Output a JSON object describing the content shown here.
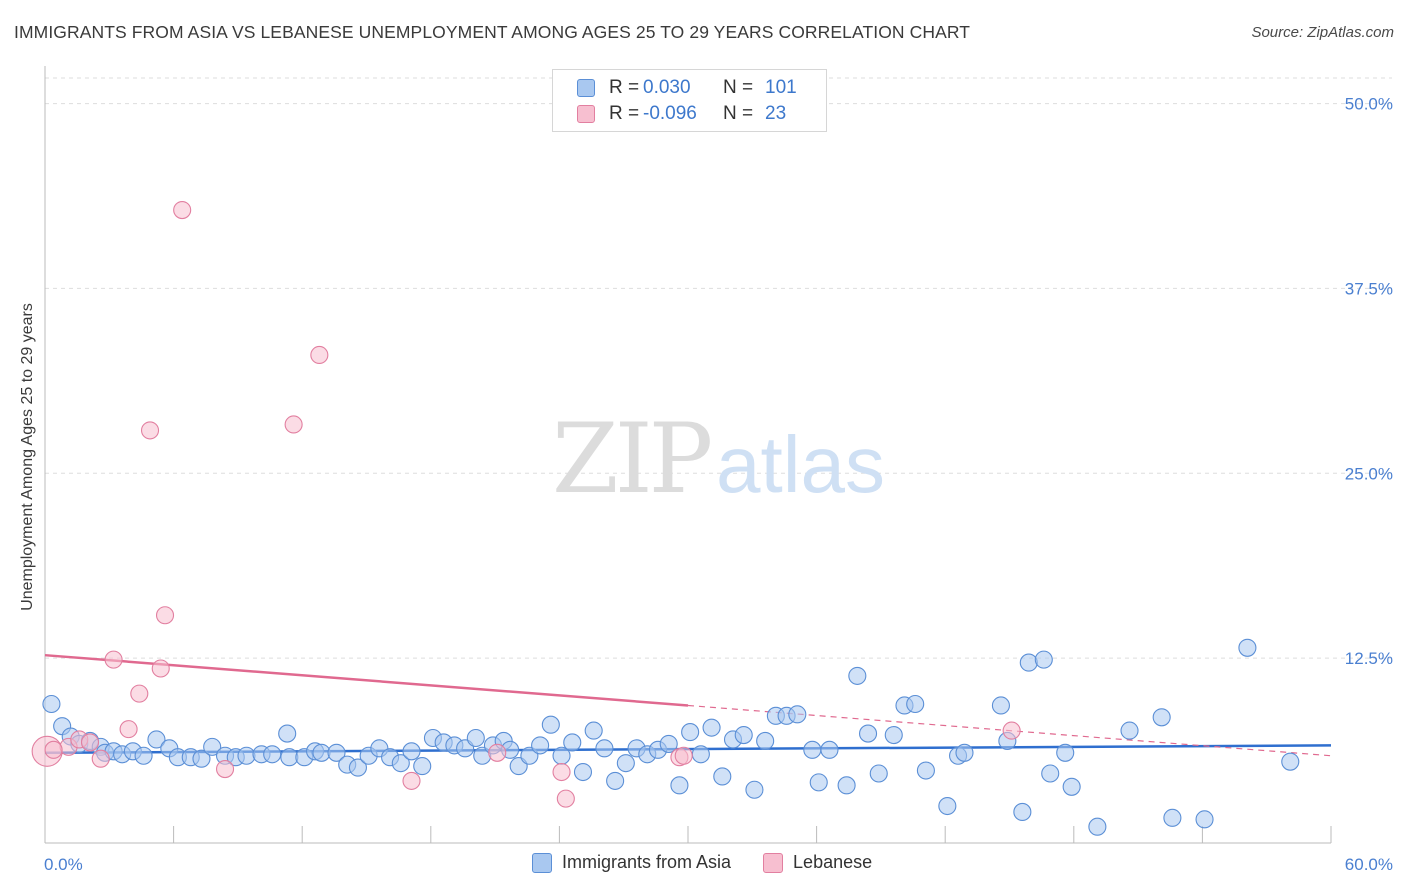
{
  "header": {
    "title": "IMMIGRANTS FROM ASIA VS LEBANESE UNEMPLOYMENT AMONG AGES 25 TO 29 YEARS CORRELATION CHART",
    "source": "Source: ZipAtlas.com"
  },
  "watermark": {
    "zip": "ZIP",
    "atlas": "atlas"
  },
  "legend": {
    "rows": [
      {
        "r_label": "R =",
        "r_value": "0.030",
        "n_label": "N =",
        "n_value": "101",
        "color": "#a9c8f0",
        "border": "#5b8fd6"
      },
      {
        "r_label": "R =",
        "r_value": "-0.096",
        "n_label": "N =",
        "n_value": "23",
        "color": "#f7bfd0",
        "border": "#e27fa0"
      }
    ]
  },
  "bottom_legend": [
    {
      "label": "Immigrants from Asia",
      "color": "#a9c8f0",
      "border": "#5b8fd6"
    },
    {
      "label": "Lebanese",
      "color": "#f7bfd0",
      "border": "#e27fa0"
    }
  ],
  "chart_data": {
    "type": "scatter",
    "title": "IMMIGRANTS FROM ASIA VS LEBANESE UNEMPLOYMENT AMONG AGES 25 TO 29 YEARS CORRELATION CHART",
    "xlabel": "",
    "ylabel": "Unemployment Among Ages 25 to 29 years",
    "xlim": [
      0,
      60
    ],
    "ylim": [
      0,
      52
    ],
    "x_tick_labels": [
      "0.0%",
      "60.0%"
    ],
    "y_ticks": [
      12.5,
      25.0,
      37.5,
      50.0
    ],
    "y_tick_labels": [
      "12.5%",
      "25.0%",
      "37.5%",
      "50.0%"
    ],
    "grid": true,
    "series": [
      {
        "name": "Immigrants from Asia",
        "color": "#a9c8f0",
        "edge": "#5b8fd6",
        "trend": {
          "x": [
            0,
            60
          ],
          "y": [
            6.1,
            6.6
          ],
          "color": "#2f6fcf"
        },
        "points": [
          [
            0.3,
            9.4
          ],
          [
            0.8,
            7.9
          ],
          [
            1.2,
            7.2
          ],
          [
            1.6,
            6.7
          ],
          [
            2.1,
            6.9
          ],
          [
            2.6,
            6.5
          ],
          [
            2.8,
            6.1
          ],
          [
            3.2,
            6.2
          ],
          [
            3.6,
            6.0
          ],
          [
            4.1,
            6.2
          ],
          [
            4.6,
            5.9
          ],
          [
            5.2,
            7.0
          ],
          [
            5.8,
            6.4
          ],
          [
            6.2,
            5.8
          ],
          [
            6.8,
            5.8
          ],
          [
            7.3,
            5.7
          ],
          [
            7.8,
            6.5
          ],
          [
            8.4,
            5.9
          ],
          [
            8.9,
            5.8
          ],
          [
            9.4,
            5.9
          ],
          [
            10.1,
            6.0
          ],
          [
            10.6,
            6.0
          ],
          [
            11.3,
            7.4
          ],
          [
            11.4,
            5.8
          ],
          [
            12.1,
            5.8
          ],
          [
            12.6,
            6.2
          ],
          [
            12.9,
            6.1
          ],
          [
            13.6,
            6.1
          ],
          [
            14.1,
            5.3
          ],
          [
            14.6,
            5.1
          ],
          [
            15.1,
            5.9
          ],
          [
            15.6,
            6.4
          ],
          [
            16.1,
            5.8
          ],
          [
            16.6,
            5.4
          ],
          [
            17.1,
            6.2
          ],
          [
            17.6,
            5.2
          ],
          [
            18.1,
            7.1
          ],
          [
            18.6,
            6.8
          ],
          [
            19.1,
            6.6
          ],
          [
            19.6,
            6.4
          ],
          [
            20.1,
            7.1
          ],
          [
            20.4,
            5.9
          ],
          [
            20.9,
            6.6
          ],
          [
            21.4,
            6.9
          ],
          [
            21.7,
            6.3
          ],
          [
            22.1,
            5.2
          ],
          [
            22.6,
            5.9
          ],
          [
            23.1,
            6.6
          ],
          [
            23.6,
            8.0
          ],
          [
            24.1,
            5.9
          ],
          [
            24.6,
            6.8
          ],
          [
            25.1,
            4.8
          ],
          [
            25.6,
            7.6
          ],
          [
            26.1,
            6.4
          ],
          [
            26.6,
            4.2
          ],
          [
            27.1,
            5.4
          ],
          [
            27.6,
            6.4
          ],
          [
            28.1,
            6.0
          ],
          [
            28.6,
            6.3
          ],
          [
            29.1,
            6.7
          ],
          [
            29.6,
            3.9
          ],
          [
            30.1,
            7.5
          ],
          [
            30.6,
            6.0
          ],
          [
            31.1,
            7.8
          ],
          [
            31.6,
            4.5
          ],
          [
            32.1,
            7.0
          ],
          [
            32.6,
            7.3
          ],
          [
            33.1,
            3.6
          ],
          [
            33.6,
            6.9
          ],
          [
            34.1,
            8.6
          ],
          [
            34.6,
            8.6
          ],
          [
            35.1,
            8.7
          ],
          [
            35.8,
            6.3
          ],
          [
            36.1,
            4.1
          ],
          [
            36.6,
            6.3
          ],
          [
            37.4,
            3.9
          ],
          [
            37.9,
            11.3
          ],
          [
            38.4,
            7.4
          ],
          [
            38.9,
            4.7
          ],
          [
            39.6,
            7.3
          ],
          [
            40.1,
            9.3
          ],
          [
            40.6,
            9.4
          ],
          [
            41.1,
            4.9
          ],
          [
            42.1,
            2.5
          ],
          [
            42.6,
            5.9
          ],
          [
            42.9,
            6.1
          ],
          [
            44.6,
            9.3
          ],
          [
            44.9,
            6.9
          ],
          [
            45.6,
            2.1
          ],
          [
            45.9,
            12.2
          ],
          [
            46.6,
            12.4
          ],
          [
            46.9,
            4.7
          ],
          [
            47.6,
            6.1
          ],
          [
            47.9,
            3.8
          ],
          [
            49.1,
            1.1
          ],
          [
            50.6,
            7.6
          ],
          [
            52.1,
            8.5
          ],
          [
            52.6,
            1.7
          ],
          [
            54.1,
            1.6
          ],
          [
            56.1,
            13.2
          ],
          [
            58.1,
            5.5
          ]
        ]
      },
      {
        "name": "Lebanese",
        "color": "#f7bfd0",
        "edge": "#e27fa0",
        "trend": {
          "x": [
            0,
            60
          ],
          "y": [
            12.7,
            5.9
          ],
          "solid_until": 30,
          "color": "#e0698f"
        },
        "points": [
          [
            0.1,
            6.2
          ],
          [
            1.1,
            6.5
          ],
          [
            1.6,
            7.0
          ],
          [
            2.1,
            6.8
          ],
          [
            2.6,
            5.7
          ],
          [
            3.2,
            12.4
          ],
          [
            3.9,
            7.7
          ],
          [
            4.4,
            10.1
          ],
          [
            4.9,
            27.9
          ],
          [
            5.4,
            11.8
          ],
          [
            5.6,
            15.4
          ],
          [
            6.4,
            42.8
          ],
          [
            8.4,
            5.0
          ],
          [
            11.6,
            28.3
          ],
          [
            12.8,
            33.0
          ],
          [
            17.1,
            4.2
          ],
          [
            21.1,
            6.1
          ],
          [
            24.1,
            4.8
          ],
          [
            24.3,
            3.0
          ],
          [
            29.6,
            5.8
          ],
          [
            29.8,
            5.9
          ],
          [
            45.1,
            7.6
          ],
          [
            0.4,
            6.3
          ]
        ]
      }
    ]
  }
}
